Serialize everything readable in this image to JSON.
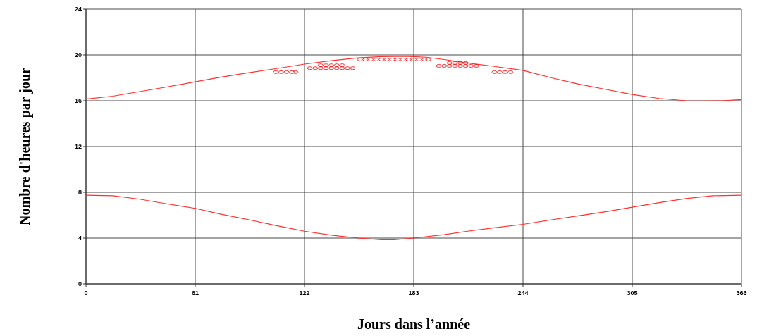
{
  "chart_data": {
    "type": "line",
    "xlabel": "Jours dans l’année",
    "ylabel": "Nombre d'heures par jour",
    "xlim": [
      0,
      366
    ],
    "xticks": [
      0,
      61,
      122,
      183,
      244,
      305,
      366
    ],
    "ylim": [
      0,
      24
    ],
    "yticks": [
      0,
      4,
      8,
      12,
      16,
      20,
      24
    ],
    "grid": true,
    "series": [
      {
        "color": "#ff3030",
        "marker": "none",
        "x": [
          0,
          15,
          30,
          45,
          61,
          75,
          91,
          106,
          122,
          137,
          152,
          165,
          172,
          180,
          190,
          200,
          213,
          228,
          244,
          260,
          275,
          290,
          305,
          320,
          335,
          345,
          355,
          366
        ],
        "values": [
          16.15,
          16.4,
          16.8,
          17.2,
          17.65,
          18.05,
          18.45,
          18.8,
          19.2,
          19.5,
          19.75,
          19.85,
          19.87,
          19.87,
          19.8,
          19.6,
          19.3,
          19.0,
          18.65,
          18.0,
          17.45,
          17.0,
          16.55,
          16.2,
          16.0,
          15.98,
          16.0,
          16.1
        ]
      },
      {
        "color": "#ff3030",
        "marker": "none",
        "x": [
          0,
          15,
          30,
          45,
          61,
          75,
          91,
          106,
          122,
          137,
          152,
          165,
          172,
          183,
          200,
          213,
          228,
          244,
          260,
          275,
          290,
          305,
          320,
          335,
          350,
          366
        ],
        "values": [
          7.75,
          7.7,
          7.4,
          7.0,
          6.6,
          6.1,
          5.6,
          5.1,
          4.6,
          4.25,
          4.0,
          3.85,
          3.85,
          4.0,
          4.3,
          4.6,
          4.9,
          5.2,
          5.6,
          5.95,
          6.3,
          6.7,
          7.1,
          7.45,
          7.7,
          7.75
        ]
      },
      {
        "type": "scatter",
        "color": "#ff0000",
        "marker": "circle",
        "x": [
          106,
          109,
          112,
          115,
          117,
          125,
          128,
          131,
          134,
          137,
          140,
          143,
          146,
          149,
          131,
          134,
          137,
          140,
          143,
          153,
          156,
          159,
          162,
          165,
          168,
          171,
          174,
          177,
          180,
          183,
          186,
          189,
          191,
          197,
          200,
          203,
          206,
          209,
          212,
          215,
          218,
          203,
          206,
          209,
          212,
          228,
          231,
          234,
          237
        ],
        "values": [
          18.5,
          18.5,
          18.5,
          18.5,
          18.5,
          18.85,
          18.85,
          18.85,
          18.85,
          18.85,
          18.85,
          18.85,
          18.85,
          18.85,
          19.1,
          19.1,
          19.1,
          19.1,
          19.1,
          19.6,
          19.6,
          19.6,
          19.6,
          19.6,
          19.6,
          19.6,
          19.6,
          19.6,
          19.6,
          19.6,
          19.6,
          19.6,
          19.6,
          19.05,
          19.05,
          19.05,
          19.05,
          19.05,
          19.05,
          19.05,
          19.05,
          19.3,
          19.3,
          19.3,
          19.3,
          18.5,
          18.5,
          18.5,
          18.5
        ]
      }
    ]
  }
}
